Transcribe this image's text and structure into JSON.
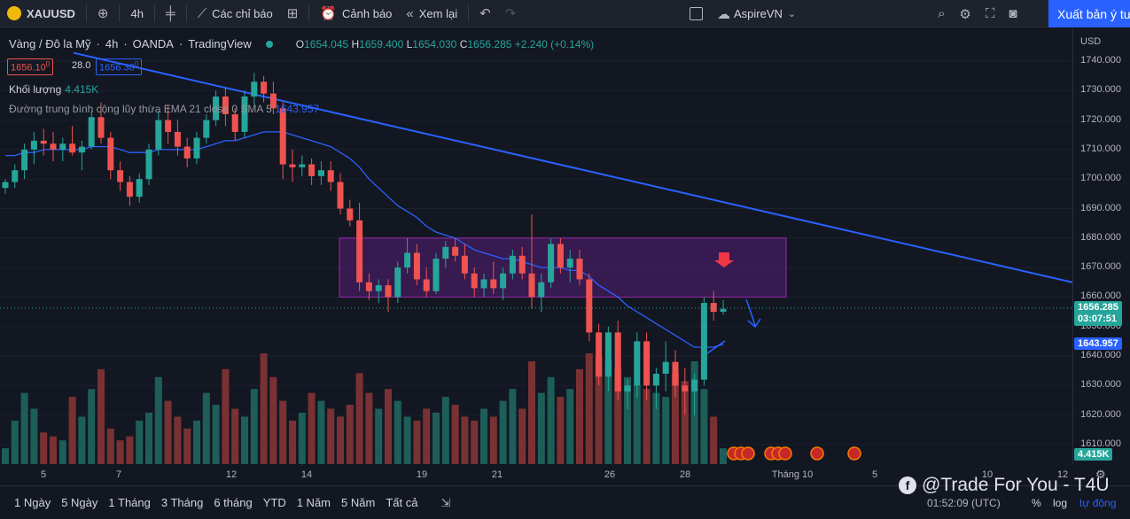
{
  "toolbar": {
    "symbol": "XAUUSD",
    "interval": "4h",
    "indicators_label": "Các chỉ báo",
    "alert_label": "Cảnh báo",
    "replay_label": "Xem lại",
    "layout_name": "AspireVN",
    "publish_label": "Xuất bản ý tư"
  },
  "legend": {
    "title": "Vàng / Đô la Mỹ",
    "interval": "4h",
    "exchange": "OANDA",
    "source": "TradingView",
    "ohlc": {
      "o_key": "O",
      "o": "1654.045",
      "h_key": "H",
      "h": "1659.400",
      "l_key": "L",
      "l": "1654.030",
      "c_key": "C",
      "c": "1656.285",
      "change": "+2.240 (+0.14%)"
    },
    "bid": "1656.10",
    "bid_sup": "0",
    "spread": "28.0",
    "ask": "1656.38",
    "ask_sup": "0",
    "volume_label": "Khối lượng",
    "volume_value": "4.415K",
    "ema_label": "Đường trung bình cộng lũy thừa EMA 21 close 0 SMA 5",
    "ema_value": "1643.957"
  },
  "price_scale": {
    "currency": "USD",
    "ticks": [
      "1740.000",
      "1730.000",
      "1720.000",
      "1710.000",
      "1700.000",
      "1690.000",
      "1680.000",
      "1670.000",
      "1660.000",
      "1650.000",
      "1640.000",
      "1630.000",
      "1620.000",
      "1610.000"
    ],
    "last_price": "1656.285",
    "countdown": "03:07:51",
    "ema_tag": "1643.957",
    "volume_tag": "4.415K"
  },
  "time_scale": {
    "ticks": [
      "5",
      "7",
      "12",
      "14",
      "19",
      "21",
      "26",
      "28",
      "Tháng 10",
      "5",
      "10",
      "12"
    ]
  },
  "bottombar": {
    "ranges": [
      "1 Ngày",
      "5 Ngày",
      "1 Tháng",
      "3 Tháng",
      "6 tháng",
      "YTD",
      "1 Năm",
      "5 Năm",
      "Tất cả"
    ],
    "clock": "01:52:09 (UTC)",
    "percent": "%",
    "log": "log",
    "auto": "tự động"
  },
  "watermark": "@Trade For You - T4U",
  "colors": {
    "up": "#26a69a",
    "down": "#ef5350",
    "ema": "#2962ff",
    "zone": "#7b1fa2",
    "background": "#131722"
  },
  "chart_data": {
    "type": "candlestick",
    "ylim": [
      1605,
      1744
    ],
    "candles": [
      [
        1697,
        1700,
        1695,
        1699
      ],
      [
        1699,
        1705,
        1697,
        1703
      ],
      [
        1703,
        1712,
        1700,
        1710
      ],
      [
        1710,
        1716,
        1705,
        1713
      ],
      [
        1713,
        1717,
        1708,
        1712
      ],
      [
        1712,
        1716,
        1706,
        1710
      ],
      [
        1710,
        1714,
        1706,
        1712
      ],
      [
        1712,
        1718,
        1708,
        1709
      ],
      [
        1709,
        1713,
        1703,
        1711
      ],
      [
        1711,
        1723,
        1710,
        1721
      ],
      [
        1721,
        1726,
        1712,
        1714
      ],
      [
        1714,
        1716,
        1700,
        1703
      ],
      [
        1703,
        1706,
        1696,
        1699
      ],
      [
        1699,
        1701,
        1691,
        1694
      ],
      [
        1694,
        1702,
        1692,
        1700
      ],
      [
        1700,
        1712,
        1698,
        1710
      ],
      [
        1710,
        1723,
        1708,
        1720
      ],
      [
        1720,
        1725,
        1712,
        1716
      ],
      [
        1716,
        1720,
        1708,
        1711
      ],
      [
        1711,
        1714,
        1704,
        1707
      ],
      [
        1707,
        1716,
        1705,
        1714
      ],
      [
        1714,
        1722,
        1712,
        1720
      ],
      [
        1720,
        1730,
        1718,
        1728
      ],
      [
        1728,
        1731,
        1718,
        1722
      ],
      [
        1722,
        1724,
        1713,
        1716
      ],
      [
        1716,
        1730,
        1714,
        1728
      ],
      [
        1728,
        1736,
        1725,
        1733
      ],
      [
        1733,
        1735,
        1726,
        1729
      ],
      [
        1729,
        1733,
        1722,
        1724
      ],
      [
        1724,
        1726,
        1700,
        1705
      ],
      [
        1705,
        1710,
        1699,
        1704
      ],
      [
        1704,
        1708,
        1701,
        1705
      ],
      [
        1705,
        1707,
        1698,
        1701
      ],
      [
        1701,
        1706,
        1698,
        1703
      ],
      [
        1703,
        1706,
        1696,
        1699
      ],
      [
        1699,
        1702,
        1688,
        1690
      ],
      [
        1690,
        1693,
        1684,
        1686
      ],
      [
        1686,
        1692,
        1662,
        1665
      ],
      [
        1665,
        1668,
        1659,
        1662
      ],
      [
        1662,
        1666,
        1658,
        1664
      ],
      [
        1664,
        1666,
        1655,
        1660
      ],
      [
        1660,
        1672,
        1658,
        1670
      ],
      [
        1670,
        1680,
        1668,
        1675
      ],
      [
        1675,
        1678,
        1664,
        1666
      ],
      [
        1666,
        1670,
        1660,
        1662
      ],
      [
        1662,
        1675,
        1661,
        1673
      ],
      [
        1673,
        1679,
        1670,
        1677
      ],
      [
        1677,
        1680,
        1672,
        1674
      ],
      [
        1674,
        1678,
        1666,
        1668
      ],
      [
        1668,
        1670,
        1660,
        1663
      ],
      [
        1663,
        1668,
        1660,
        1666
      ],
      [
        1666,
        1672,
        1661,
        1663
      ],
      [
        1663,
        1670,
        1659,
        1668
      ],
      [
        1668,
        1676,
        1666,
        1674
      ],
      [
        1674,
        1677,
        1666,
        1668
      ],
      [
        1668,
        1688,
        1656,
        1660
      ],
      [
        1660,
        1668,
        1655,
        1665
      ],
      [
        1665,
        1680,
        1663,
        1678
      ],
      [
        1678,
        1680,
        1668,
        1670
      ],
      [
        1670,
        1676,
        1665,
        1673
      ],
      [
        1673,
        1676,
        1664,
        1666
      ],
      [
        1666,
        1668,
        1645,
        1648
      ],
      [
        1648,
        1651,
        1630,
        1633
      ],
      [
        1633,
        1650,
        1628,
        1648
      ],
      [
        1648,
        1652,
        1625,
        1628
      ],
      [
        1628,
        1632,
        1622,
        1630
      ],
      [
        1630,
        1648,
        1626,
        1645
      ],
      [
        1645,
        1648,
        1625,
        1630
      ],
      [
        1630,
        1636,
        1622,
        1634
      ],
      [
        1634,
        1645,
        1628,
        1638
      ],
      [
        1638,
        1642,
        1626,
        1630
      ],
      [
        1630,
        1636,
        1620,
        1628
      ],
      [
        1628,
        1634,
        1620,
        1632
      ],
      [
        1632,
        1660,
        1630,
        1658
      ],
      [
        1658,
        1662,
        1652,
        1655
      ],
      [
        1655,
        1659,
        1654,
        1656
      ]
    ],
    "volumes": [
      20,
      55,
      90,
      70,
      40,
      35,
      30,
      85,
      60,
      95,
      120,
      45,
      30,
      35,
      55,
      65,
      110,
      80,
      60,
      45,
      55,
      90,
      75,
      120,
      70,
      60,
      95,
      140,
      110,
      80,
      55,
      65,
      90,
      80,
      70,
      60,
      75,
      115,
      90,
      70,
      95,
      80,
      60,
      55,
      70,
      65,
      85,
      75,
      60,
      55,
      70,
      60,
      80,
      95,
      70,
      130,
      90,
      110,
      85,
      95,
      120,
      140,
      135,
      130,
      120,
      110,
      100,
      95,
      90,
      85,
      115,
      105,
      130,
      95,
      60,
      20
    ],
    "zone": {
      "top": 1680,
      "bottom": 1660
    },
    "trendline": {
      "from": [
        0,
        1744
      ],
      "to": [
        1,
        1665
      ]
    },
    "ema": [
      1708,
      1708,
      1709,
      1709,
      1710,
      1710,
      1710,
      1710,
      1710,
      1711,
      1711,
      1711,
      1710,
      1709,
      1709,
      1709,
      1710,
      1710,
      1710,
      1710,
      1710,
      1711,
      1712,
      1713,
      1713,
      1714,
      1715,
      1716,
      1716,
      1716,
      1715,
      1714,
      1713,
      1712,
      1711,
      1709,
      1707,
      1704,
      1700,
      1697,
      1694,
      1691,
      1689,
      1687,
      1684,
      1682,
      1681,
      1680,
      1678,
      1676,
      1675,
      1674,
      1673,
      1673,
      1672,
      1671,
      1670,
      1670,
      1670,
      1669,
      1669,
      1667,
      1664,
      1662,
      1660,
      1657,
      1655,
      1653,
      1651,
      1649,
      1647,
      1645,
      1643,
      1643,
      1643,
      1644
    ]
  }
}
